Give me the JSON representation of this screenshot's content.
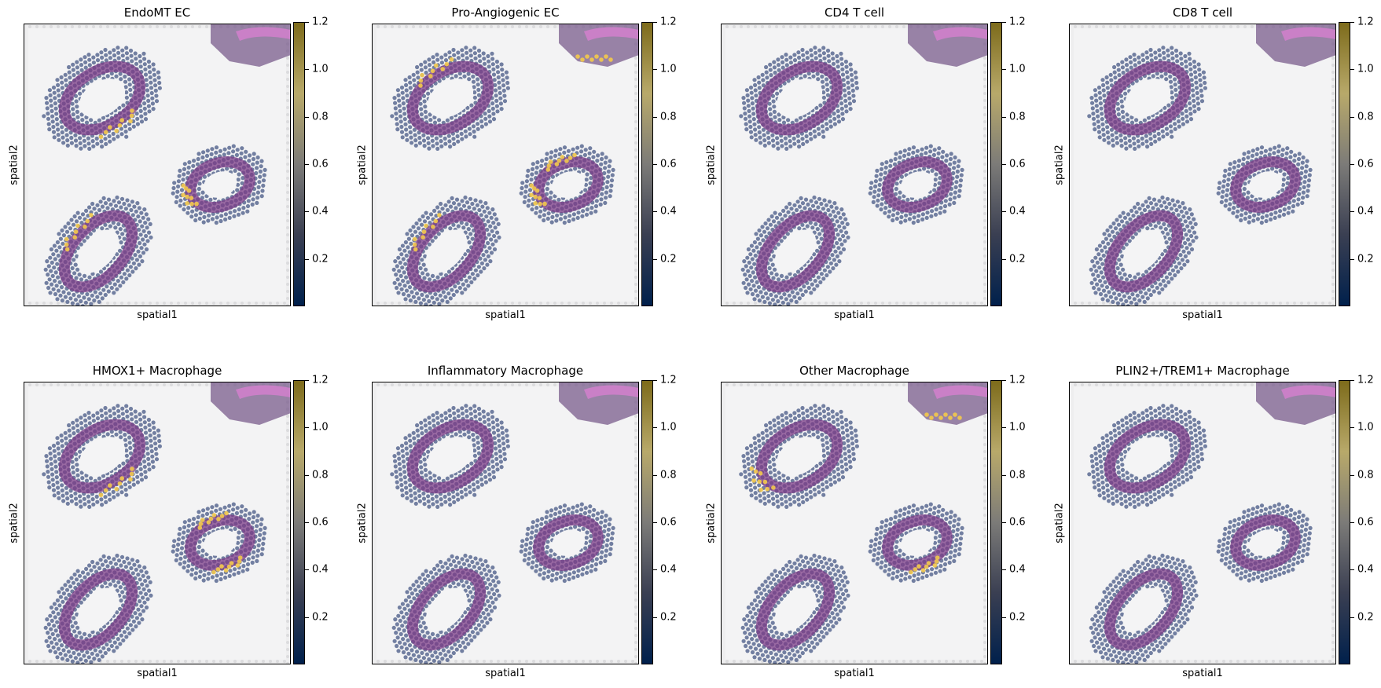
{
  "chart_data": {
    "type": "scatter",
    "xlabel": "spatial1",
    "ylabel": "spatial2",
    "colorbar": {
      "ticks": [
        "0.2",
        "0.4",
        "0.6",
        "0.8",
        "1.0",
        "1.2"
      ],
      "range": [
        0,
        1.2
      ],
      "colors": [
        "#00204c",
        "#3a3f52",
        "#7c7b78",
        "#b8a96a",
        "#7d6b1b"
      ]
    },
    "panels": [
      {
        "title": "EndoMT EC",
        "highlights": [
          {
            "region": "upper-left-ring",
            "side": "bottom"
          },
          {
            "region": "right-ring",
            "side": "left"
          },
          {
            "region": "lower-left-ring",
            "side": "top"
          }
        ]
      },
      {
        "title": "Pro-Angiogenic EC",
        "highlights": [
          {
            "region": "upper-left-ring",
            "side": "top"
          },
          {
            "region": "right-ring",
            "side": "top"
          },
          {
            "region": "right-ring",
            "side": "left"
          },
          {
            "region": "lower-left-ring",
            "side": "top"
          },
          {
            "region": "top-right-strip",
            "side": "bottom"
          }
        ]
      },
      {
        "title": "CD4 T cell",
        "highlights": []
      },
      {
        "title": "CD8 T cell",
        "highlights": []
      },
      {
        "title": "HMOX1+ Macrophage",
        "highlights": [
          {
            "region": "upper-left-ring",
            "side": "bottom"
          },
          {
            "region": "right-ring",
            "side": "top"
          },
          {
            "region": "right-ring",
            "side": "bottom"
          }
        ]
      },
      {
        "title": "Inflammatory Macrophage",
        "highlights": []
      },
      {
        "title": "Other Macrophage",
        "highlights": [
          {
            "region": "upper-left-ring",
            "side": "left"
          },
          {
            "region": "right-ring",
            "side": "bottom"
          },
          {
            "region": "top-right-strip",
            "side": "bottom"
          }
        ]
      },
      {
        "title": "PLIN2+/TREM1+ Macrophage",
        "highlights": []
      }
    ]
  }
}
